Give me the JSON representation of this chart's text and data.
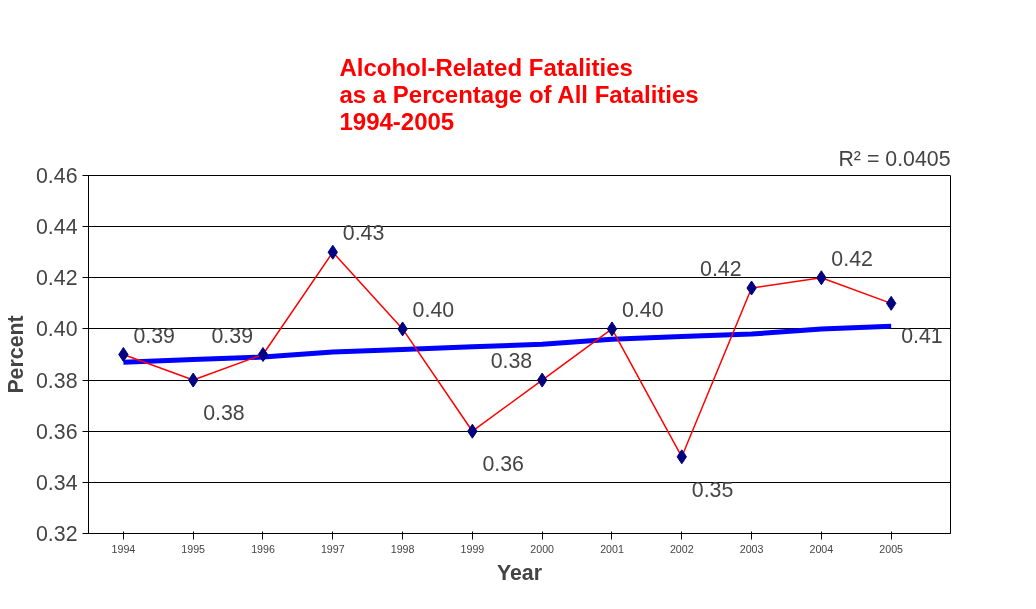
{
  "chart_data": {
    "type": "line",
    "title": "Alcohol-Related Fatalities\nas a Percentage of All Fatalities\n1994-2005",
    "xlabel": "Year",
    "ylabel": "Percent",
    "categories": [
      "1994",
      "1995",
      "1996",
      "1997",
      "1998",
      "1999",
      "2000",
      "2001",
      "2002",
      "2003",
      "2004",
      "2005"
    ],
    "series": [
      {
        "color": "#ff0000",
        "values": [
          0.39,
          0.38,
          0.39,
          0.43,
          0.4,
          0.36,
          0.38,
          0.4,
          0.35,
          0.416,
          0.42,
          0.41
        ],
        "marker": "diamond",
        "value_labels": [
          "0.39",
          "0.38",
          "0.39",
          "0.43",
          "0.40",
          "0.36",
          "0.38",
          "0.40",
          "0.35",
          "0.42",
          "0.42",
          "0.41"
        ]
      },
      {
        "color": "#0000ff",
        "values": [
          0.387,
          0.388,
          0.389,
          0.391,
          0.392,
          0.393,
          0.394,
          0.396,
          0.397,
          0.398,
          0.4,
          0.401
        ],
        "marker": "none"
      }
    ],
    "ylim": [
      0.32,
      0.46
    ],
    "yticks": [
      {
        "value": 0.32,
        "label": "0.32"
      },
      {
        "value": 0.34,
        "label": "0.34"
      },
      {
        "value": 0.36,
        "label": "0.36"
      },
      {
        "value": 0.38,
        "label": "0.38"
      },
      {
        "value": 0.4,
        "label": "0.40"
      },
      {
        "value": 0.42,
        "label": "0.42"
      },
      {
        "value": 0.44,
        "label": "0.44"
      },
      {
        "value": 0.46,
        "label": "0.46"
      }
    ],
    "grid": "y",
    "annotations": [
      "R² = 0.0405"
    ]
  }
}
